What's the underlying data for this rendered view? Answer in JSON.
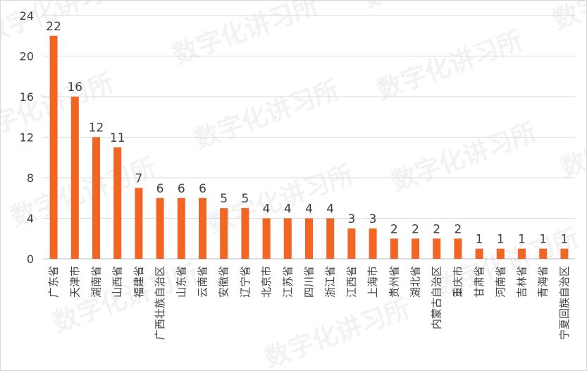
{
  "chart_data": {
    "type": "bar",
    "categories": [
      "广东省",
      "天津市",
      "湖南省",
      "山西省",
      "福建省",
      "广西壮族自治区",
      "山东省",
      "云南省",
      "安徽省",
      "辽宁省",
      "北京市",
      "江苏省",
      "四川省",
      "浙江省",
      "江西省",
      "上海市",
      "贵州省",
      "湖北省",
      "内蒙古自治区",
      "重庆市",
      "甘肃省",
      "河南省",
      "吉林省",
      "青海省",
      "宁夏回族自治区"
    ],
    "values": [
      22,
      16,
      12,
      11,
      7,
      6,
      6,
      6,
      5,
      5,
      4,
      4,
      4,
      4,
      3,
      3,
      2,
      2,
      2,
      2,
      1,
      1,
      1,
      1,
      1
    ],
    "yticks": [
      0,
      4,
      8,
      12,
      16,
      20,
      24
    ],
    "ylim": [
      0,
      24
    ],
    "grid": true,
    "bar_color": "#f26522",
    "title": "",
    "xlabel": "",
    "ylabel": ""
  },
  "watermark": "数字化讲习所"
}
